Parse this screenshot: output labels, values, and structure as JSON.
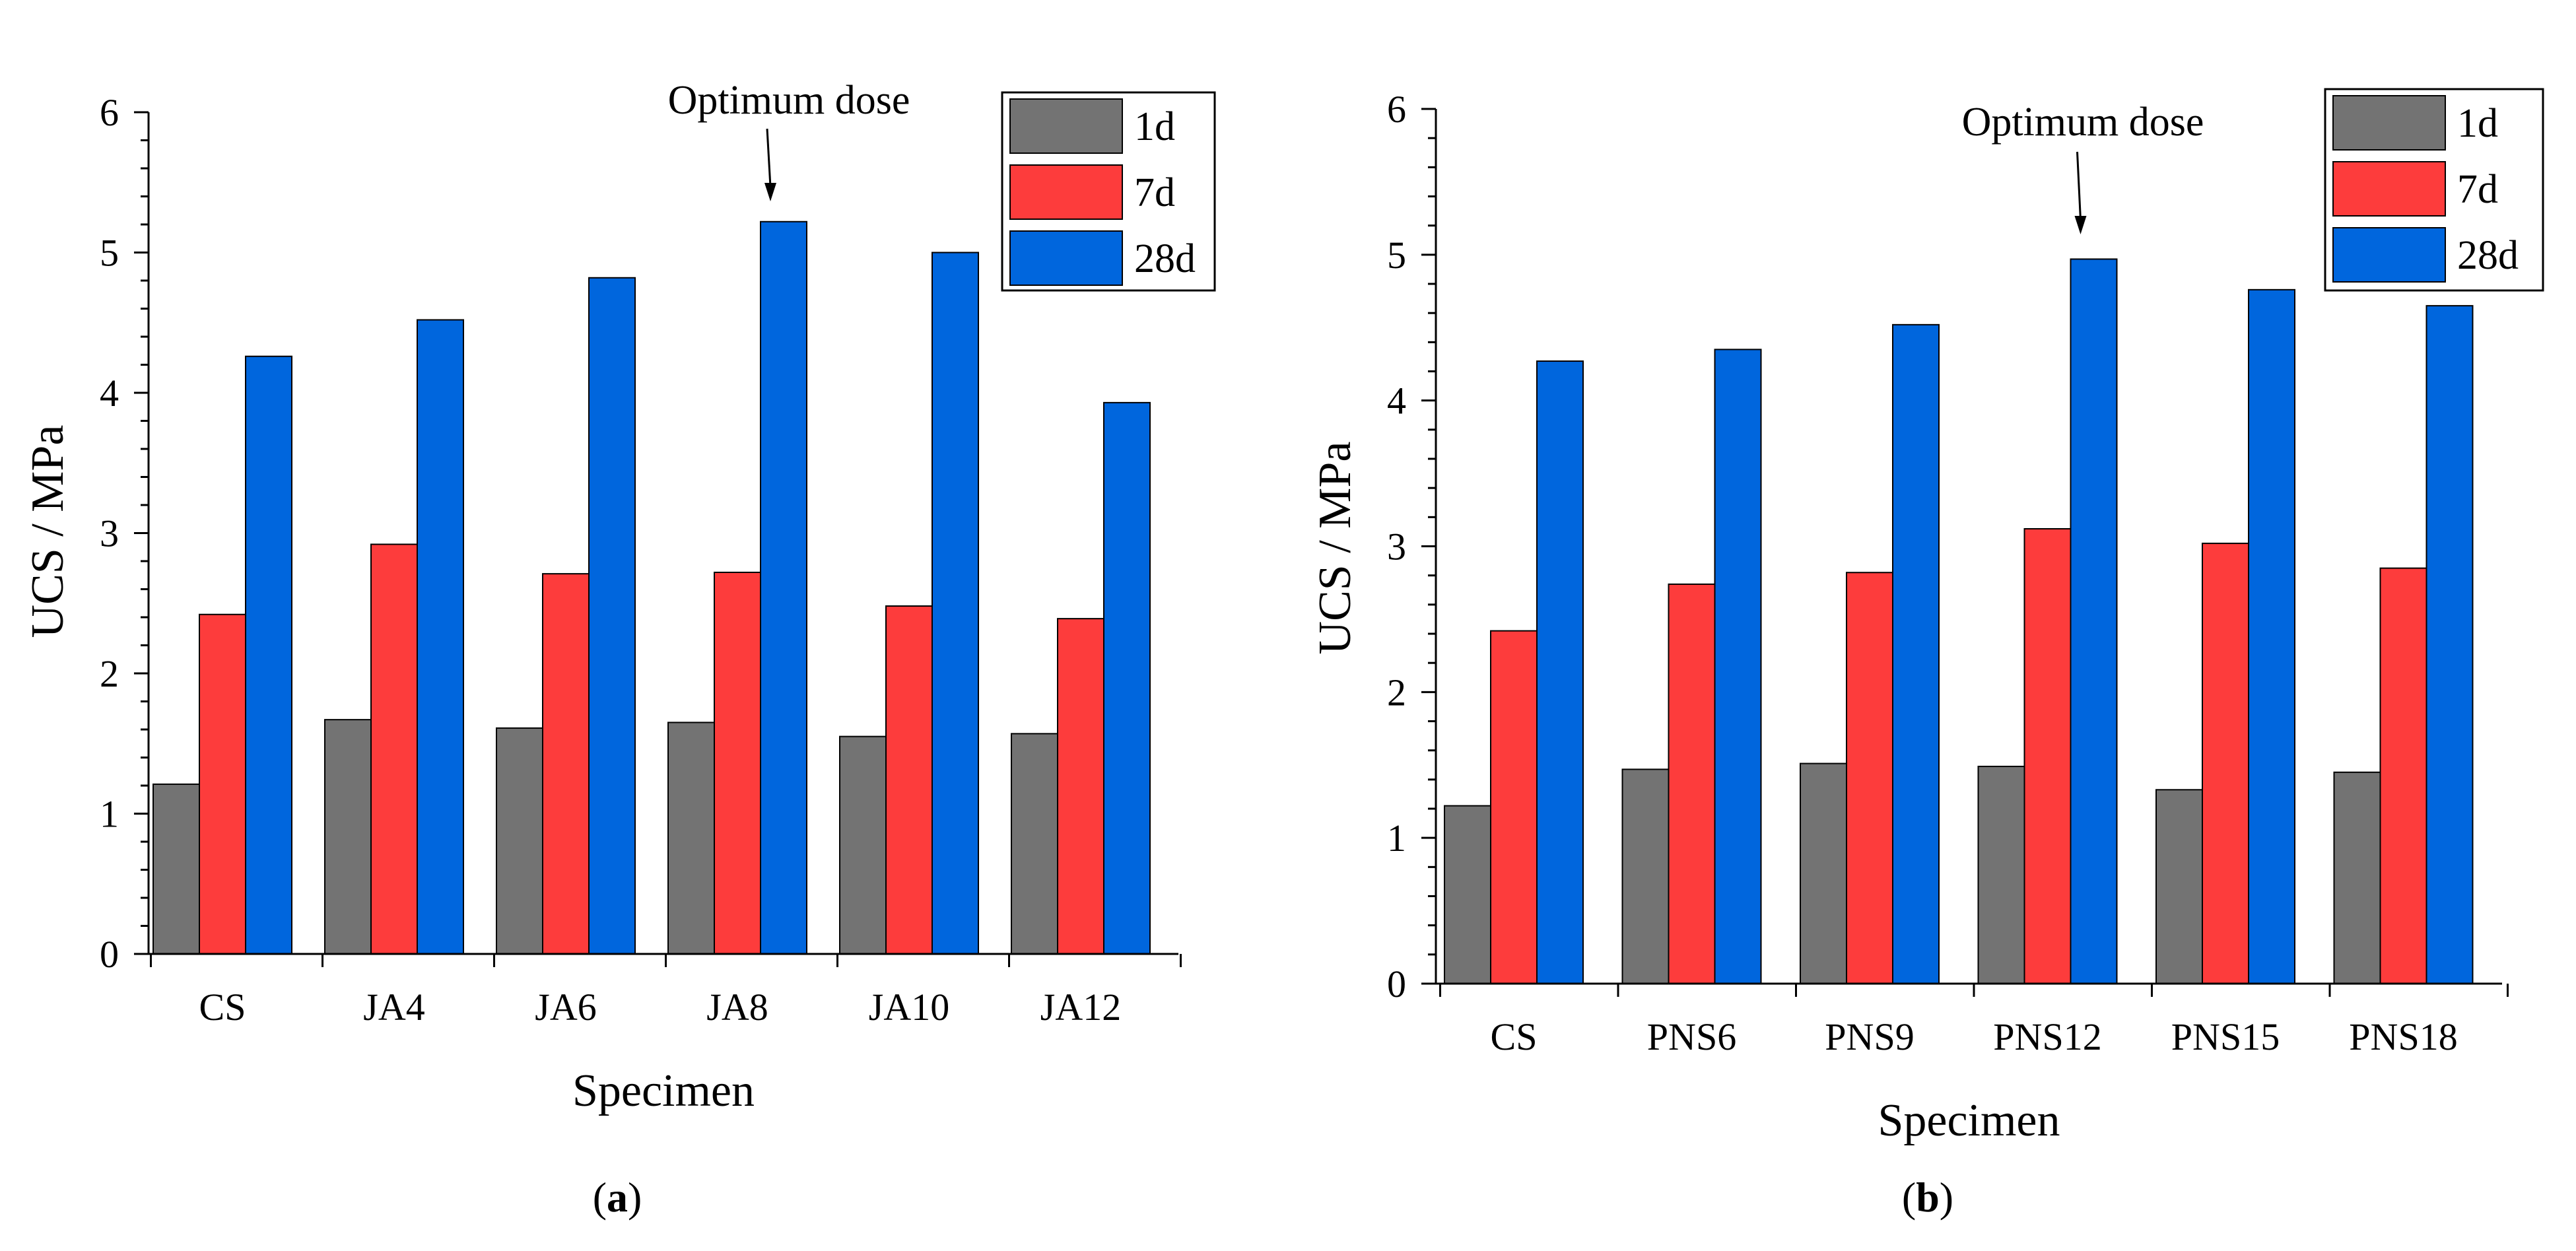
{
  "colors": {
    "d1": "#737373",
    "d7": "#fd3c3c",
    "d28": "#0066dd"
  },
  "chart_data": [
    {
      "type": "bar",
      "panel_label": "a",
      "xlabel": "Specimen",
      "ylabel": "UCS / MPa",
      "ylim": [
        0,
        6
      ],
      "yticks": [
        "0",
        "1",
        "2",
        "3",
        "4",
        "5",
        "6"
      ],
      "categories": [
        "CS",
        "JA4",
        "JA6",
        "JA8",
        "JA10",
        "JA12"
      ],
      "series": [
        {
          "name": "1d",
          "values": [
            1.21,
            1.67,
            1.61,
            1.65,
            1.55,
            1.57
          ]
        },
        {
          "name": "7d",
          "values": [
            2.42,
            2.92,
            2.71,
            2.72,
            2.48,
            2.39
          ]
        },
        {
          "name": "28d",
          "values": [
            4.26,
            4.52,
            4.82,
            5.22,
            5.0,
            3.93
          ]
        }
      ],
      "annotation": {
        "text": "Optimum dose",
        "category_index": 3
      },
      "legend_position": "top-right"
    },
    {
      "type": "bar",
      "panel_label": "b",
      "xlabel": "Specimen",
      "ylabel": "UCS / MPa",
      "ylim": [
        0,
        6
      ],
      "yticks": [
        "0",
        "1",
        "2",
        "3",
        "4",
        "5",
        "6"
      ],
      "categories": [
        "CS",
        "PNS6",
        "PNS9",
        "PNS12",
        "PNS15",
        "PNS18"
      ],
      "series": [
        {
          "name": "1d",
          "values": [
            1.22,
            1.47,
            1.51,
            1.49,
            1.33,
            1.45
          ]
        },
        {
          "name": "7d",
          "values": [
            2.42,
            2.74,
            2.82,
            3.12,
            3.02,
            2.85
          ]
        },
        {
          "name": "28d",
          "values": [
            4.27,
            4.35,
            4.52,
            4.97,
            4.76,
            4.65
          ]
        }
      ],
      "annotation": {
        "text": "Optimum dose",
        "category_index": 3
      },
      "legend_position": "top-right"
    }
  ]
}
